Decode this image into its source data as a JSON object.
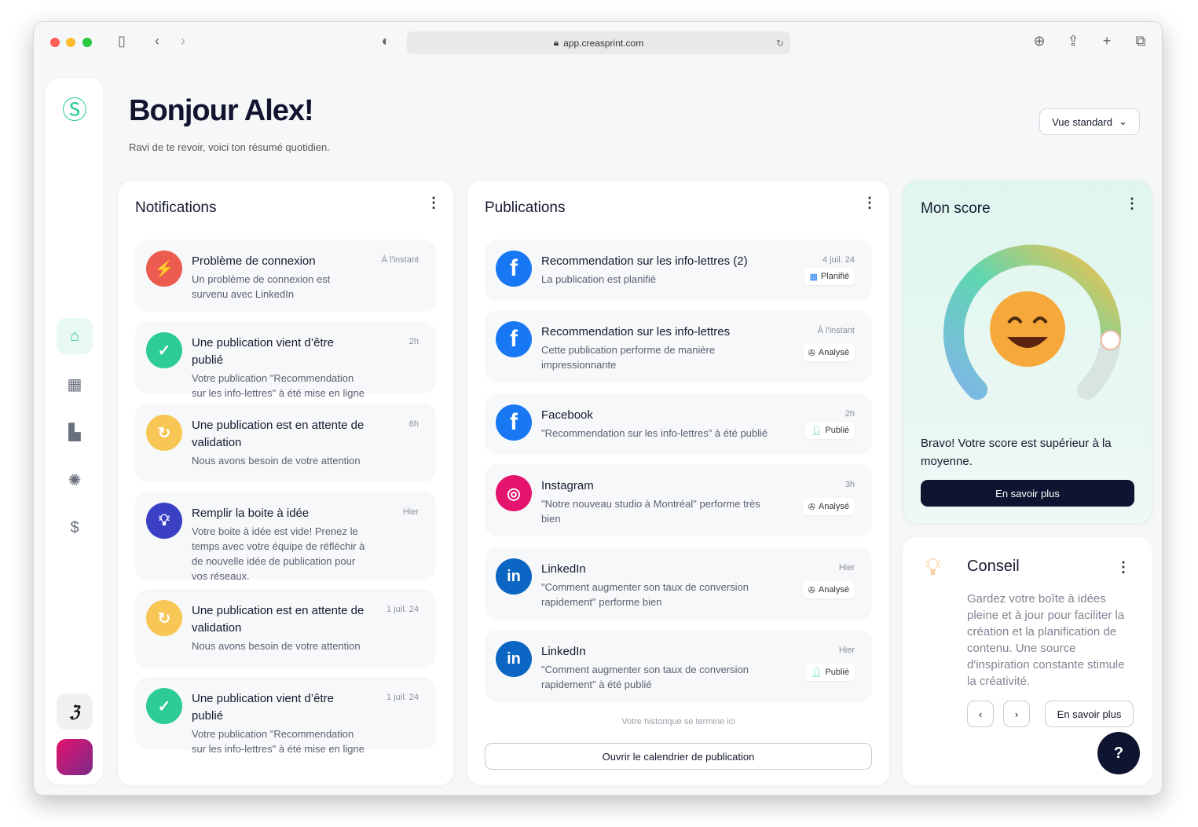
{
  "browser": {
    "url": "app.creasprint.com"
  },
  "header": {
    "title": "Bonjour Alex!",
    "subtitle": "Ravi de te revoir, voici ton résumé quotidien.",
    "view_select": "Vue standard"
  },
  "sidebar": {
    "items": [
      {
        "icon": "home-icon"
      },
      {
        "icon": "calendar-icon"
      },
      {
        "icon": "content-icon"
      },
      {
        "icon": "idea-icon"
      },
      {
        "icon": "dollar-icon"
      }
    ]
  },
  "notifications": {
    "title": "Notifications",
    "items": [
      {
        "title": "Problème de connexion",
        "desc": "Un problème de connexion est survenu avec LinkedIn",
        "time": "À l'instant",
        "color": "#ec5b4f",
        "icon": "plug-icon"
      },
      {
        "title": "Une publication vient d’être publié",
        "desc": "Votre publication \"Recommendation sur les info-lettres\" à été mise en ligne",
        "time": "2h",
        "color": "#2dcb98",
        "icon": "check-icon"
      },
      {
        "title": "Une publication est en attente de validation",
        "desc": "Nous avons besoin de votre attention",
        "time": "6h",
        "color": "#f7c655",
        "icon": "refresh-icon"
      },
      {
        "title": "Remplir la boite à idée",
        "desc": "Votre boite à idée est vide! Prenez le temps avec votre équipe de réfléchir à de nouvelle idée de publication pour vos réseaux.",
        "time": "Hier",
        "color": "#3b3fc4",
        "icon": "lightbulb-icon"
      },
      {
        "title": "Une publication est en attente de validation",
        "desc": "Nous avons besoin de votre attention",
        "time": "1 juil. 24",
        "color": "#f7c655",
        "icon": "refresh-icon"
      },
      {
        "title": "Une publication vient d’être publié",
        "desc": "Votre publication \"Recommendation sur les info-lettres\" à été mise en ligne",
        "time": "1 juil. 24",
        "color": "#2dcb98",
        "icon": "check-icon"
      }
    ]
  },
  "publications": {
    "title": "Publications",
    "end_text": "Votre historique se termine ici",
    "open_calendar": "Ouvrir le calendrier de publication",
    "items": [
      {
        "network": "facebook",
        "title": "Recommendation sur les info-lettres (2)",
        "desc": "La publication est planifié",
        "time": "4 juil. 24",
        "badge": "Planifié"
      },
      {
        "network": "facebook",
        "title": "Recommendation sur les info-lettres",
        "desc": "Cette publication performe de manière impressionnante",
        "time": "À l'instant",
        "badge": "Analysé"
      },
      {
        "network": "facebook",
        "title": "Facebook",
        "desc": "\"Recommendation sur les info-lettres\" à été publié",
        "time": "2h",
        "badge": "Publié"
      },
      {
        "network": "instagram",
        "title": "Instagram",
        "desc": "\"Notre nouveau studio à Montréal\" performe très bien",
        "time": "3h",
        "badge": "Analysé"
      },
      {
        "network": "linkedin",
        "title": "LinkedIn",
        "desc": "\"Comment augmenter son taux de conversion rapidement\" performe bien",
        "time": "Hier",
        "badge": "Analysé"
      },
      {
        "network": "linkedin",
        "title": "LinkedIn",
        "desc": "\"Comment augmenter son taux de conversion rapidement\" à été publié",
        "time": "Hier",
        "badge": "Publié"
      }
    ]
  },
  "score": {
    "title": "Mon score",
    "message": "Bravo! Votre score est supérieur à la moyenne.",
    "button": "En savoir plus",
    "level": 0.85
  },
  "tip": {
    "title": "Conseil",
    "text": "Gardez votre boîte à idées pleine et à jour pour faciliter la création et la planification de contenu. Une source d'inspiration constante stimule la créativité.",
    "button": "En savoir plus"
  },
  "colors": {
    "brand": "#2dcb98",
    "dark": "#0f1530",
    "facebook": "#1877f2",
    "instagram": "#e4136d",
    "linkedin": "#0a66c2"
  }
}
